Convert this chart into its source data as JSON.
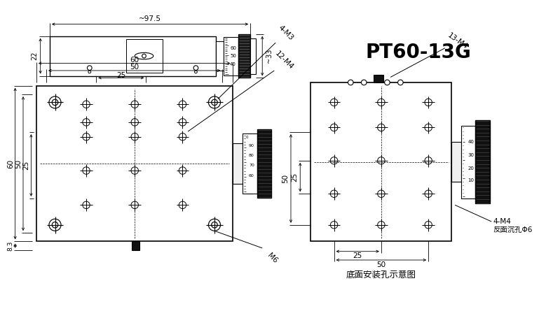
{
  "bg_color": "#ffffff",
  "line_color": "#000000",
  "title_text": "PT60-13G",
  "title_fontsize": 20,
  "title_weight": "bold",
  "subtitle_text": "底面安装孔示意图",
  "annotation_4M4": "4-M4",
  "annotation_back": "反面沉孔Φ6",
  "dim_97_5": "~97.5",
  "dim_33": "~33",
  "dim_22": "22",
  "dim_60_top": "60",
  "dim_50_top": "50",
  "dim_25_top": "25",
  "dim_4M3": "4-M3",
  "dim_12M4": "12-M4",
  "dim_M6": "M6",
  "dim_60_left": "60",
  "dim_50_left": "50",
  "dim_25_left": "25",
  "dim_8_3": "8.3",
  "dim_13M4": "13-M4",
  "dim_50_bot": "50",
  "dim_25_bot": "25",
  "dim_50_rleft": "50",
  "dim_25_rleft": "25"
}
